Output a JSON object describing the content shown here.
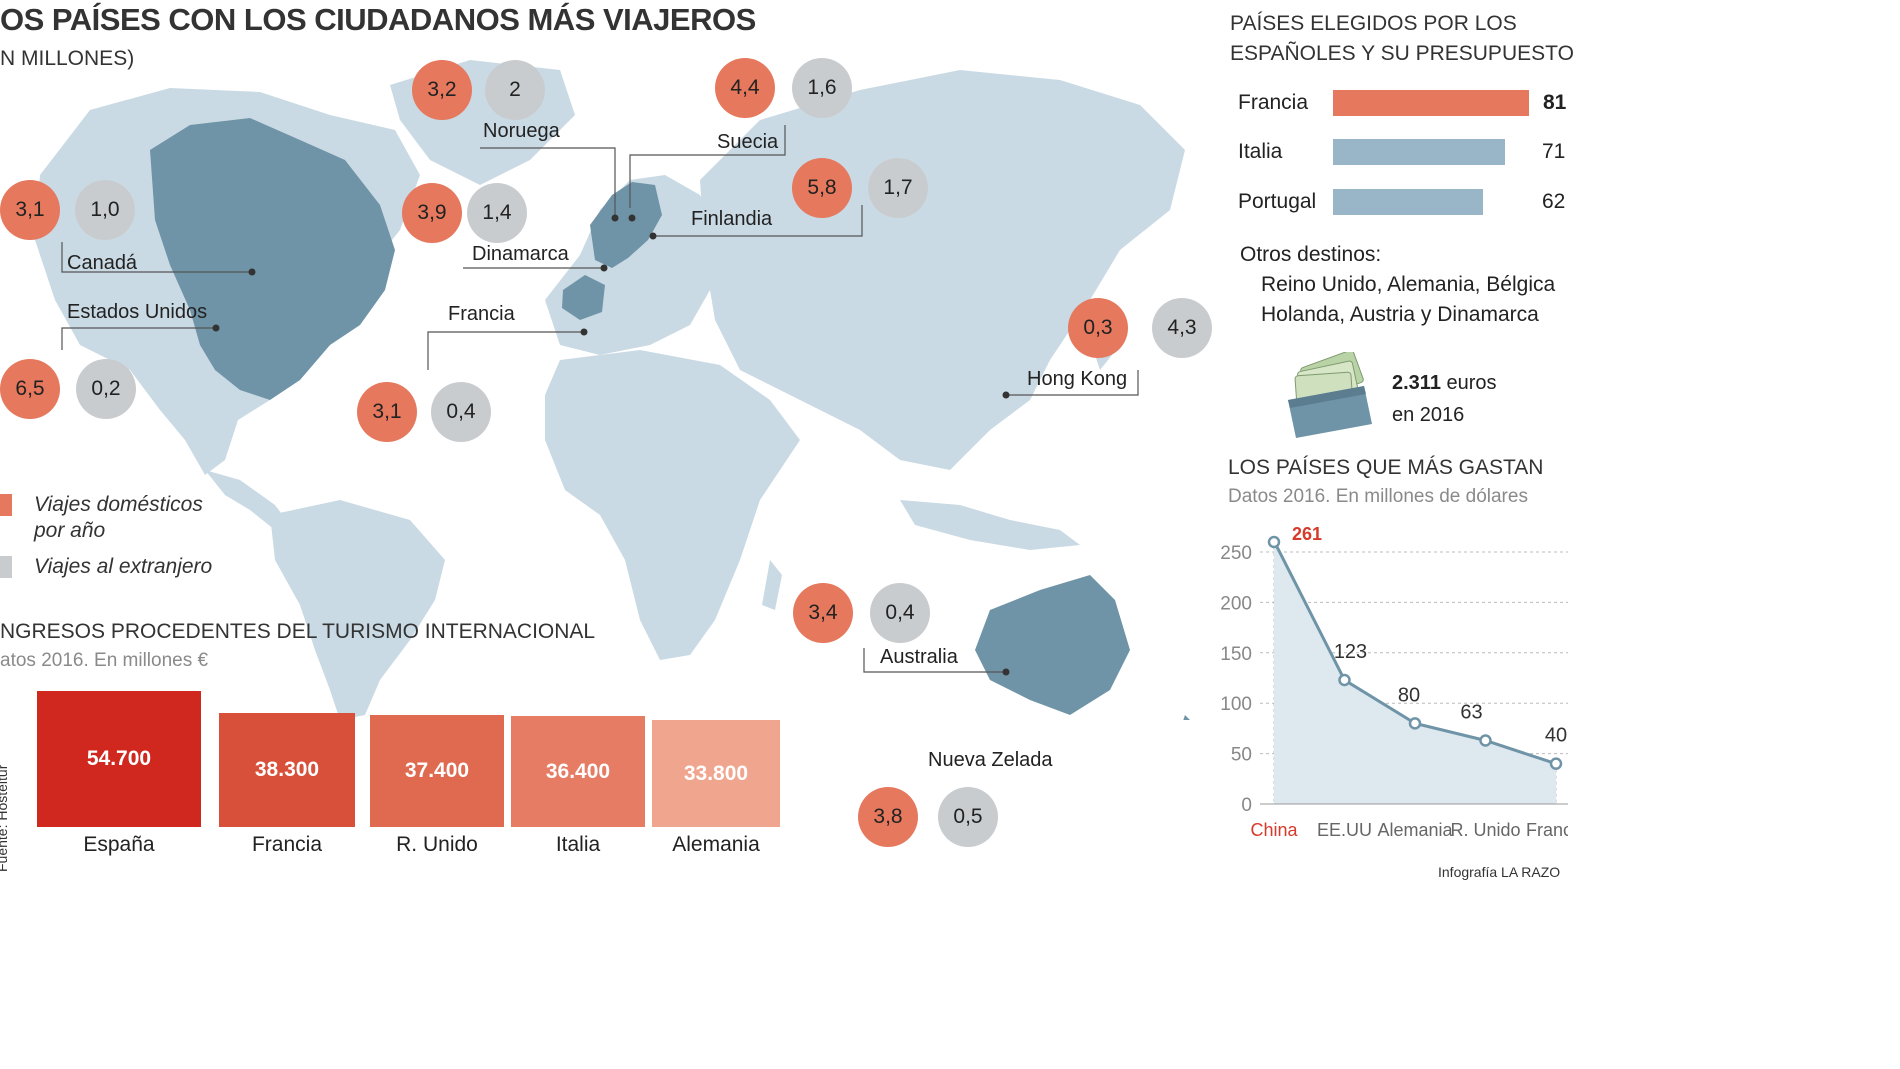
{
  "header": {
    "title": "OS PAÍSES CON LOS CIUDADANOS MÁS VIAJEROS",
    "subtitle": "N MILLONES)"
  },
  "colors": {
    "ocean": "#ffffff",
    "land": "#c9dae4",
    "highlight": "#6f94a7",
    "domestic": "#e5785d",
    "abroad": "#c9cccf",
    "pref_first": "#e5785d",
    "pref_other": "#98b6c7",
    "line": "#6f94a7",
    "line_fill": "#dde8ef",
    "accent_red": "#d63a2a"
  },
  "map_countries": [
    {
      "name": "Canadá",
      "domestic": "3,1",
      "abroad": "1,0"
    },
    {
      "name": "Estados Unidos",
      "domestic": "6,5",
      "abroad": "0,2"
    },
    {
      "name": "Noruega",
      "domestic": "3,2",
      "abroad": "2"
    },
    {
      "name": "Dinamarca",
      "domestic": "3,9",
      "abroad": "1,4"
    },
    {
      "name": "Suecia",
      "domestic": "4,4",
      "abroad": "1,6"
    },
    {
      "name": "Finlandia",
      "domestic": "5,8",
      "abroad": "1,7"
    },
    {
      "name": "Francia",
      "domestic": "3,1",
      "abroad": "0,4"
    },
    {
      "name": "Hong Kong",
      "domestic": "0,3",
      "abroad": "4,3"
    },
    {
      "name": "Australia",
      "domestic": "3,4",
      "abroad": "0,4"
    },
    {
      "name": "Nueva Zelada",
      "domestic": "3,8",
      "abroad": "0,5"
    }
  ],
  "legend": {
    "domestic_line1": "Viajes domésticos",
    "domestic_line2": "por año",
    "abroad": "Viajes al extranjero"
  },
  "spanish_prefs": {
    "title_line1": "PAÍSES ELEGIDOS POR LOS",
    "title_line2": "ESPAÑOLES Y SU PRESUPUESTO",
    "items": [
      {
        "country": "Francia",
        "percent": 81,
        "label": "81"
      },
      {
        "country": "Italia",
        "percent": 71,
        "label": "71"
      },
      {
        "country": "Portugal",
        "percent": 62,
        "label": "62"
      }
    ],
    "others_title": "Otros destinos:",
    "others_line1": "Reino Unido, Alemania, Bélgica",
    "others_line2": "Holanda, Austria y Dinamarca",
    "budget_amount": "2.311",
    "budget_unit": " euros",
    "budget_year": "en 2016"
  },
  "chart_data": [
    {
      "type": "bar",
      "title": "NGRESOS PROCEDENTES DEL TURISMO INTERNACIONAL",
      "subtitle": "atos 2016. En millones €",
      "categories": [
        "España",
        "Francia",
        "R. Unido",
        "Italia",
        "Alemania"
      ],
      "values": [
        54700,
        38300,
        37400,
        36400,
        33800
      ],
      "value_labels": [
        "54.700",
        "38.300",
        "37.400",
        "36.400",
        "33.800"
      ],
      "colors": [
        "#d0281f",
        "#d9503a",
        "#df6a50",
        "#e57c63",
        "#f0a58f"
      ],
      "ylim": [
        0,
        54700
      ],
      "source": "Fuente: Hosteltur"
    },
    {
      "type": "line",
      "title": "LOS PAÍSES QUE MÁS GASTAN",
      "subtitle": "Datos 2016. En millones de dólares",
      "categories": [
        "China",
        "EE.UU",
        "Alemania",
        "R. Unido",
        "Francia"
      ],
      "values": [
        261,
        123,
        80,
        63,
        40
      ],
      "value_labels": [
        "261",
        "123",
        "80",
        "63",
        "40"
      ],
      "ylim": [
        0,
        250
      ],
      "yticks": [
        "0",
        "50",
        "100",
        "150",
        "200",
        "250"
      ],
      "grid": true
    }
  ],
  "footer": {
    "credit": "Infografía LA RAZO"
  }
}
